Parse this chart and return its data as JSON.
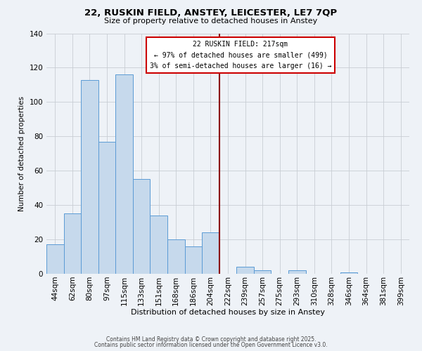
{
  "title": "22, RUSKIN FIELD, ANSTEY, LEICESTER, LE7 7QP",
  "subtitle": "Size of property relative to detached houses in Anstey",
  "xlabel": "Distribution of detached houses by size in Anstey",
  "ylabel": "Number of detached properties",
  "bar_labels": [
    "44sqm",
    "62sqm",
    "80sqm",
    "97sqm",
    "115sqm",
    "133sqm",
    "151sqm",
    "168sqm",
    "186sqm",
    "204sqm",
    "222sqm",
    "239sqm",
    "257sqm",
    "275sqm",
    "293sqm",
    "310sqm",
    "328sqm",
    "346sqm",
    "364sqm",
    "381sqm",
    "399sqm"
  ],
  "bar_values": [
    17,
    35,
    113,
    77,
    116,
    55,
    34,
    20,
    16,
    24,
    0,
    4,
    2,
    0,
    2,
    0,
    0,
    1,
    0,
    0,
    0
  ],
  "bar_color": "#c6d9ec",
  "bar_edge_color": "#5b9bd5",
  "vline_color": "#8b0000",
  "annotation_title": "22 RUSKIN FIELD: 217sqm",
  "annotation_line1": "← 97% of detached houses are smaller (499)",
  "annotation_line2": "3% of semi-detached houses are larger (16) →",
  "annotation_box_facecolor": "#ffffff",
  "annotation_box_edgecolor": "#cc0000",
  "ylim": [
    0,
    140
  ],
  "yticks": [
    0,
    20,
    40,
    60,
    80,
    100,
    120,
    140
  ],
  "background_color": "#eef2f7",
  "grid_color": "#c8cdd4",
  "footer_line1": "Contains HM Land Registry data © Crown copyright and database right 2025.",
  "footer_line2": "Contains public sector information licensed under the Open Government Licence v3.0.",
  "figsize": [
    6.0,
    5.0
  ],
  "dpi": 100
}
